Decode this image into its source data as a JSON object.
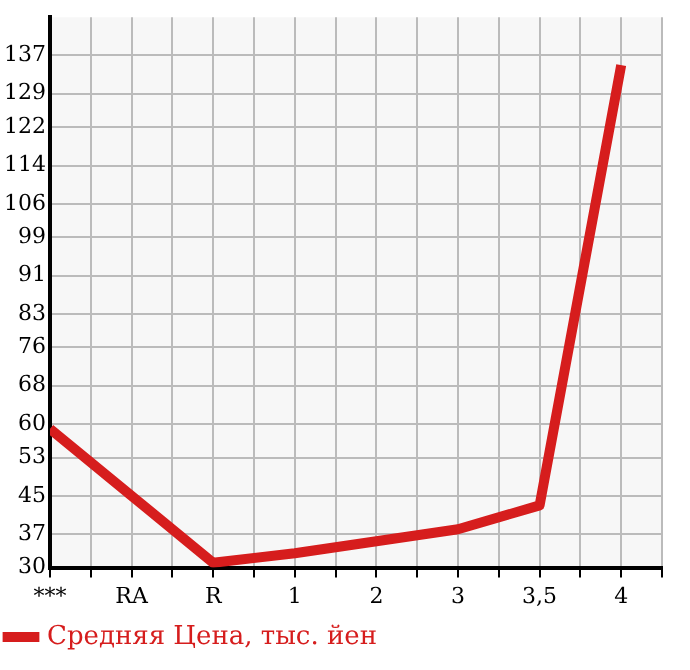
{
  "chart_data": {
    "type": "line",
    "categories": [
      "***",
      "RA",
      "R",
      "1",
      "2",
      "3",
      "3,5",
      "4"
    ],
    "series": [
      {
        "name": "Средняя Цена, тыс. йен",
        "color": "#d61d1d",
        "values": [
          59,
          45,
          31,
          33,
          35.5,
          38,
          43,
          135
        ]
      }
    ],
    "ylim": [
      30,
      145
    ],
    "yticks": [
      30,
      37,
      45,
      53,
      60,
      68,
      76,
      83,
      91,
      99,
      106,
      114,
      122,
      129,
      137
    ],
    "grid": true,
    "legend": "bottom left",
    "marker": "none"
  }
}
